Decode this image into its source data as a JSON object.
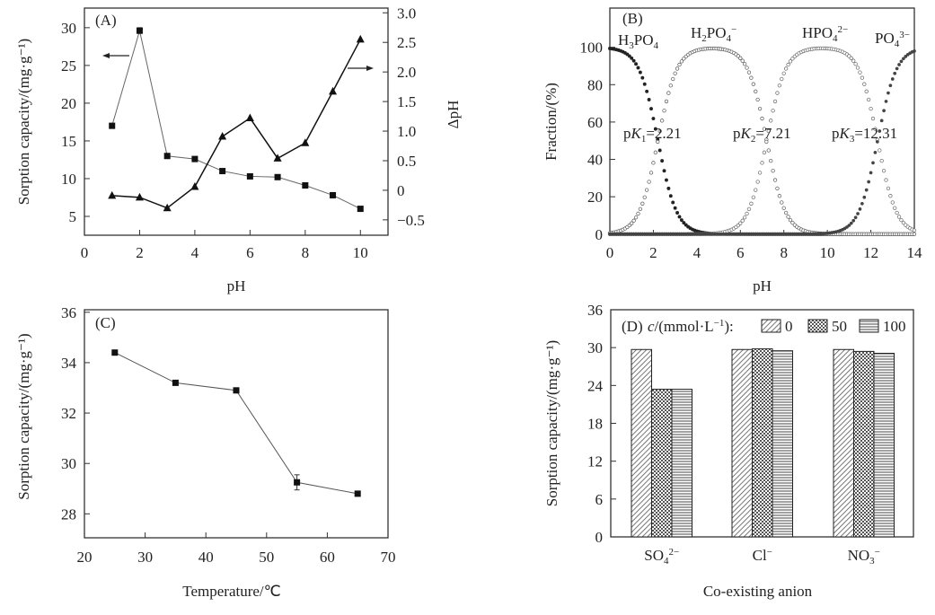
{
  "chart_data": [
    {
      "panel": "A",
      "type": "line",
      "title": "(A)",
      "xlabel": "pH",
      "ylabel": "Sorption capacity/(mg·g⁻¹)",
      "y2label": "ΔpH",
      "xlim": [
        0,
        11
      ],
      "ylim": [
        2.5,
        32.6
      ],
      "y2lim": [
        -0.76,
        3.08
      ],
      "xticks": [
        0,
        2,
        4,
        6,
        8,
        10
      ],
      "yticks": [
        5,
        10,
        15,
        20,
        25,
        30
      ],
      "y2ticks": [
        -0.5,
        0,
        0.5,
        1.0,
        1.5,
        2.0,
        2.5,
        3.0
      ],
      "y2ticklabels": [
        "−0.5",
        "0",
        "0.5",
        "1.0",
        "1.5",
        "2.0",
        "2.5",
        "3.0"
      ],
      "x": [
        1,
        2,
        3,
        4,
        5,
        6,
        7,
        8,
        9,
        10
      ],
      "series": [
        {
          "name": "Sorption capacity",
          "axis": "left",
          "marker": "square",
          "values": [
            17.0,
            29.6,
            13.0,
            12.6,
            11.0,
            10.3,
            10.2,
            9.1,
            7.8,
            6.0
          ],
          "error": [
            0,
            0.4,
            0,
            0,
            0,
            0,
            0,
            0,
            0,
            0
          ]
        },
        {
          "name": "ΔpH",
          "axis": "right",
          "marker": "triangle",
          "values": [
            -0.09,
            -0.12,
            -0.3,
            0.06,
            0.91,
            1.22,
            0.54,
            0.8,
            1.67,
            2.55
          ]
        }
      ],
      "annotations": [
        "left-arrow pointing to left axis",
        "right-arrow pointing to right axis"
      ],
      "grid": false
    },
    {
      "panel": "B",
      "type": "scatter",
      "title": "(B)",
      "xlabel": "pH",
      "ylabel": "Fraction/(%)",
      "xlim": [
        0,
        14
      ],
      "ylim": [
        -0.6,
        121
      ],
      "xticks": [
        0,
        2,
        4,
        6,
        8,
        10,
        12,
        14
      ],
      "yticks": [
        0,
        20,
        40,
        60,
        80,
        100
      ],
      "pKa": [
        2.21,
        7.21,
        12.31
      ],
      "series_labels": [
        "H₃PO₄",
        "H₂PO₄⁻",
        "HPO₄²⁻",
        "PO₄³⁻"
      ],
      "pk_labels": [
        "pK1=2.21",
        "pK2=7.21",
        "pK3=12.31"
      ],
      "description": "Speciation fractions of phosphoric acid vs pH computed from pKa values; step 0.1 pH",
      "grid": false
    },
    {
      "panel": "C",
      "type": "line",
      "title": "(C)",
      "xlabel": "Temperature/℃",
      "ylabel": "Sorption capacity/(mg·g⁻¹)",
      "xlim": [
        20,
        70
      ],
      "ylim": [
        27.05,
        36.1
      ],
      "xticks": [
        20,
        30,
        40,
        50,
        60,
        70
      ],
      "yticks": [
        28,
        30,
        32,
        34,
        36
      ],
      "x": [
        25,
        35,
        45,
        55,
        65
      ],
      "series": [
        {
          "name": "Sorption capacity",
          "marker": "square",
          "values": [
            34.4,
            33.2,
            32.9,
            29.25,
            28.8
          ],
          "error": [
            0,
            0,
            0,
            0.3,
            0
          ]
        }
      ],
      "grid": false
    },
    {
      "panel": "D",
      "type": "bar",
      "title": "(D)",
      "legend_title": "c/(mmol·L⁻¹):",
      "xlabel": "Co-existing anion",
      "ylabel": "Sorption capacity/(mg·g⁻¹)",
      "categories": [
        "SO₄²⁻",
        "Cl⁻",
        "NO₃⁻"
      ],
      "ylim": [
        0,
        36
      ],
      "yticks": [
        0,
        6,
        12,
        18,
        24,
        30,
        36
      ],
      "series": [
        {
          "name": "0",
          "pattern": "diagonal",
          "values": [
            29.7,
            29.7,
            29.7
          ]
        },
        {
          "name": "50",
          "pattern": "checker",
          "values": [
            23.4,
            29.8,
            29.4
          ]
        },
        {
          "name": "100",
          "pattern": "horizontal",
          "values": [
            23.4,
            29.5,
            29.1
          ]
        }
      ],
      "legend": "top-inside",
      "grid": false
    }
  ]
}
